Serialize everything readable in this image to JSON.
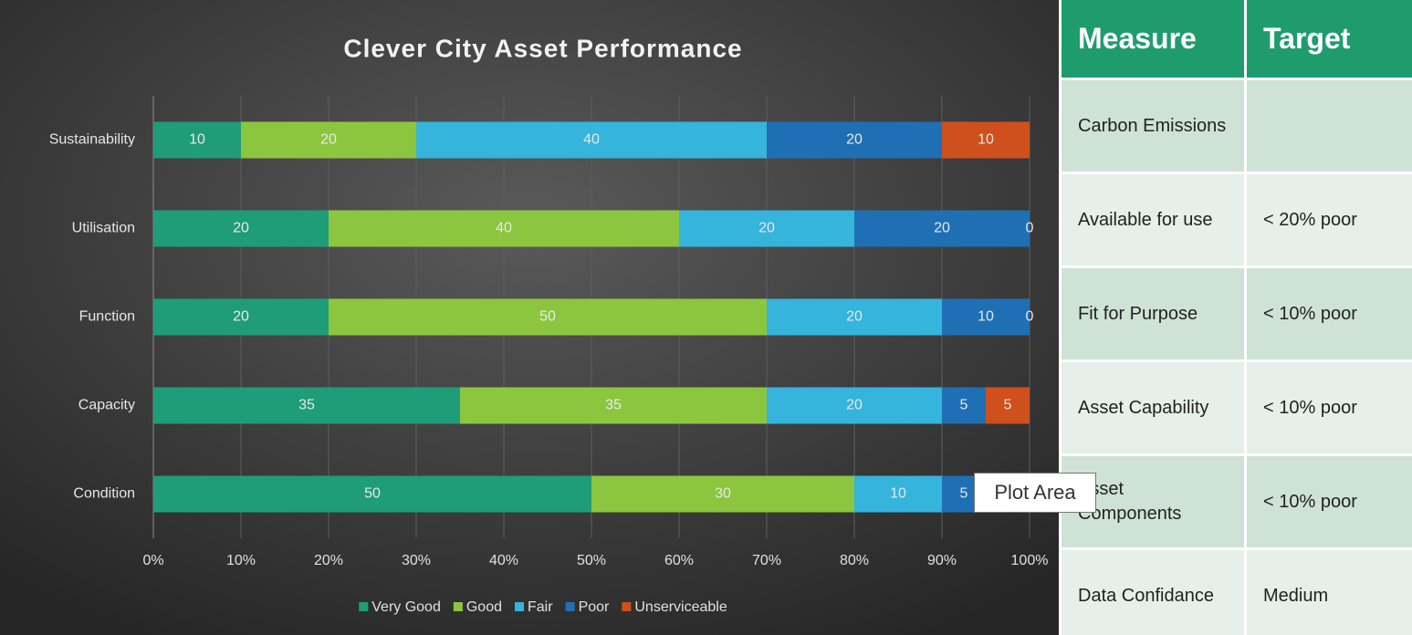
{
  "chart_data": {
    "type": "stacked_barh",
    "title": "Clever City Asset Performance",
    "categories": [
      "Sustainability",
      "Utilisation",
      "Function",
      "Capacity",
      "Condition"
    ],
    "series": [
      {
        "name": "Very Good",
        "color": "#1f9c78",
        "values": [
          10,
          20,
          20,
          35,
          50
        ]
      },
      {
        "name": "Good",
        "color": "#8cc63f",
        "values": [
          20,
          40,
          50,
          35,
          30
        ]
      },
      {
        "name": "Fair",
        "color": "#35b4dc",
        "values": [
          40,
          20,
          20,
          20,
          10
        ]
      },
      {
        "name": "Poor",
        "color": "#1f6fb5",
        "values": [
          20,
          20,
          10,
          5,
          5
        ]
      },
      {
        "name": "Unserviceable",
        "color": "#d0501d",
        "values": [
          10,
          0,
          0,
          5,
          5
        ]
      }
    ],
    "xlim": [
      0,
      100
    ],
    "xticks": [
      {
        "value": 0,
        "label": "0%"
      },
      {
        "value": 10,
        "label": "10%"
      },
      {
        "value": 20,
        "label": "20%"
      },
      {
        "value": 30,
        "label": "30%"
      },
      {
        "value": 40,
        "label": "40%"
      },
      {
        "value": 50,
        "label": "50%"
      },
      {
        "value": 60,
        "label": "60%"
      },
      {
        "value": 70,
        "label": "70%"
      },
      {
        "value": 80,
        "label": "80%"
      },
      {
        "value": 90,
        "label": "90%"
      },
      {
        "value": 100,
        "label": "100%"
      }
    ],
    "grid": true,
    "legend": "bottom"
  },
  "table": {
    "header": [
      "Measure",
      "Target"
    ],
    "rows": [
      [
        "Carbon Emissions"
      ],
      [
        "Available for use",
        "< 20% poor"
      ],
      [
        "Fit for Purpose",
        "< 10% poor"
      ],
      [
        "Asset Capability",
        "< 10% poor"
      ],
      [
        "Asset Components",
        "< 10% poor"
      ],
      [
        "Data Confidance",
        "Medium"
      ]
    ]
  },
  "tooltip": "Plot Area"
}
